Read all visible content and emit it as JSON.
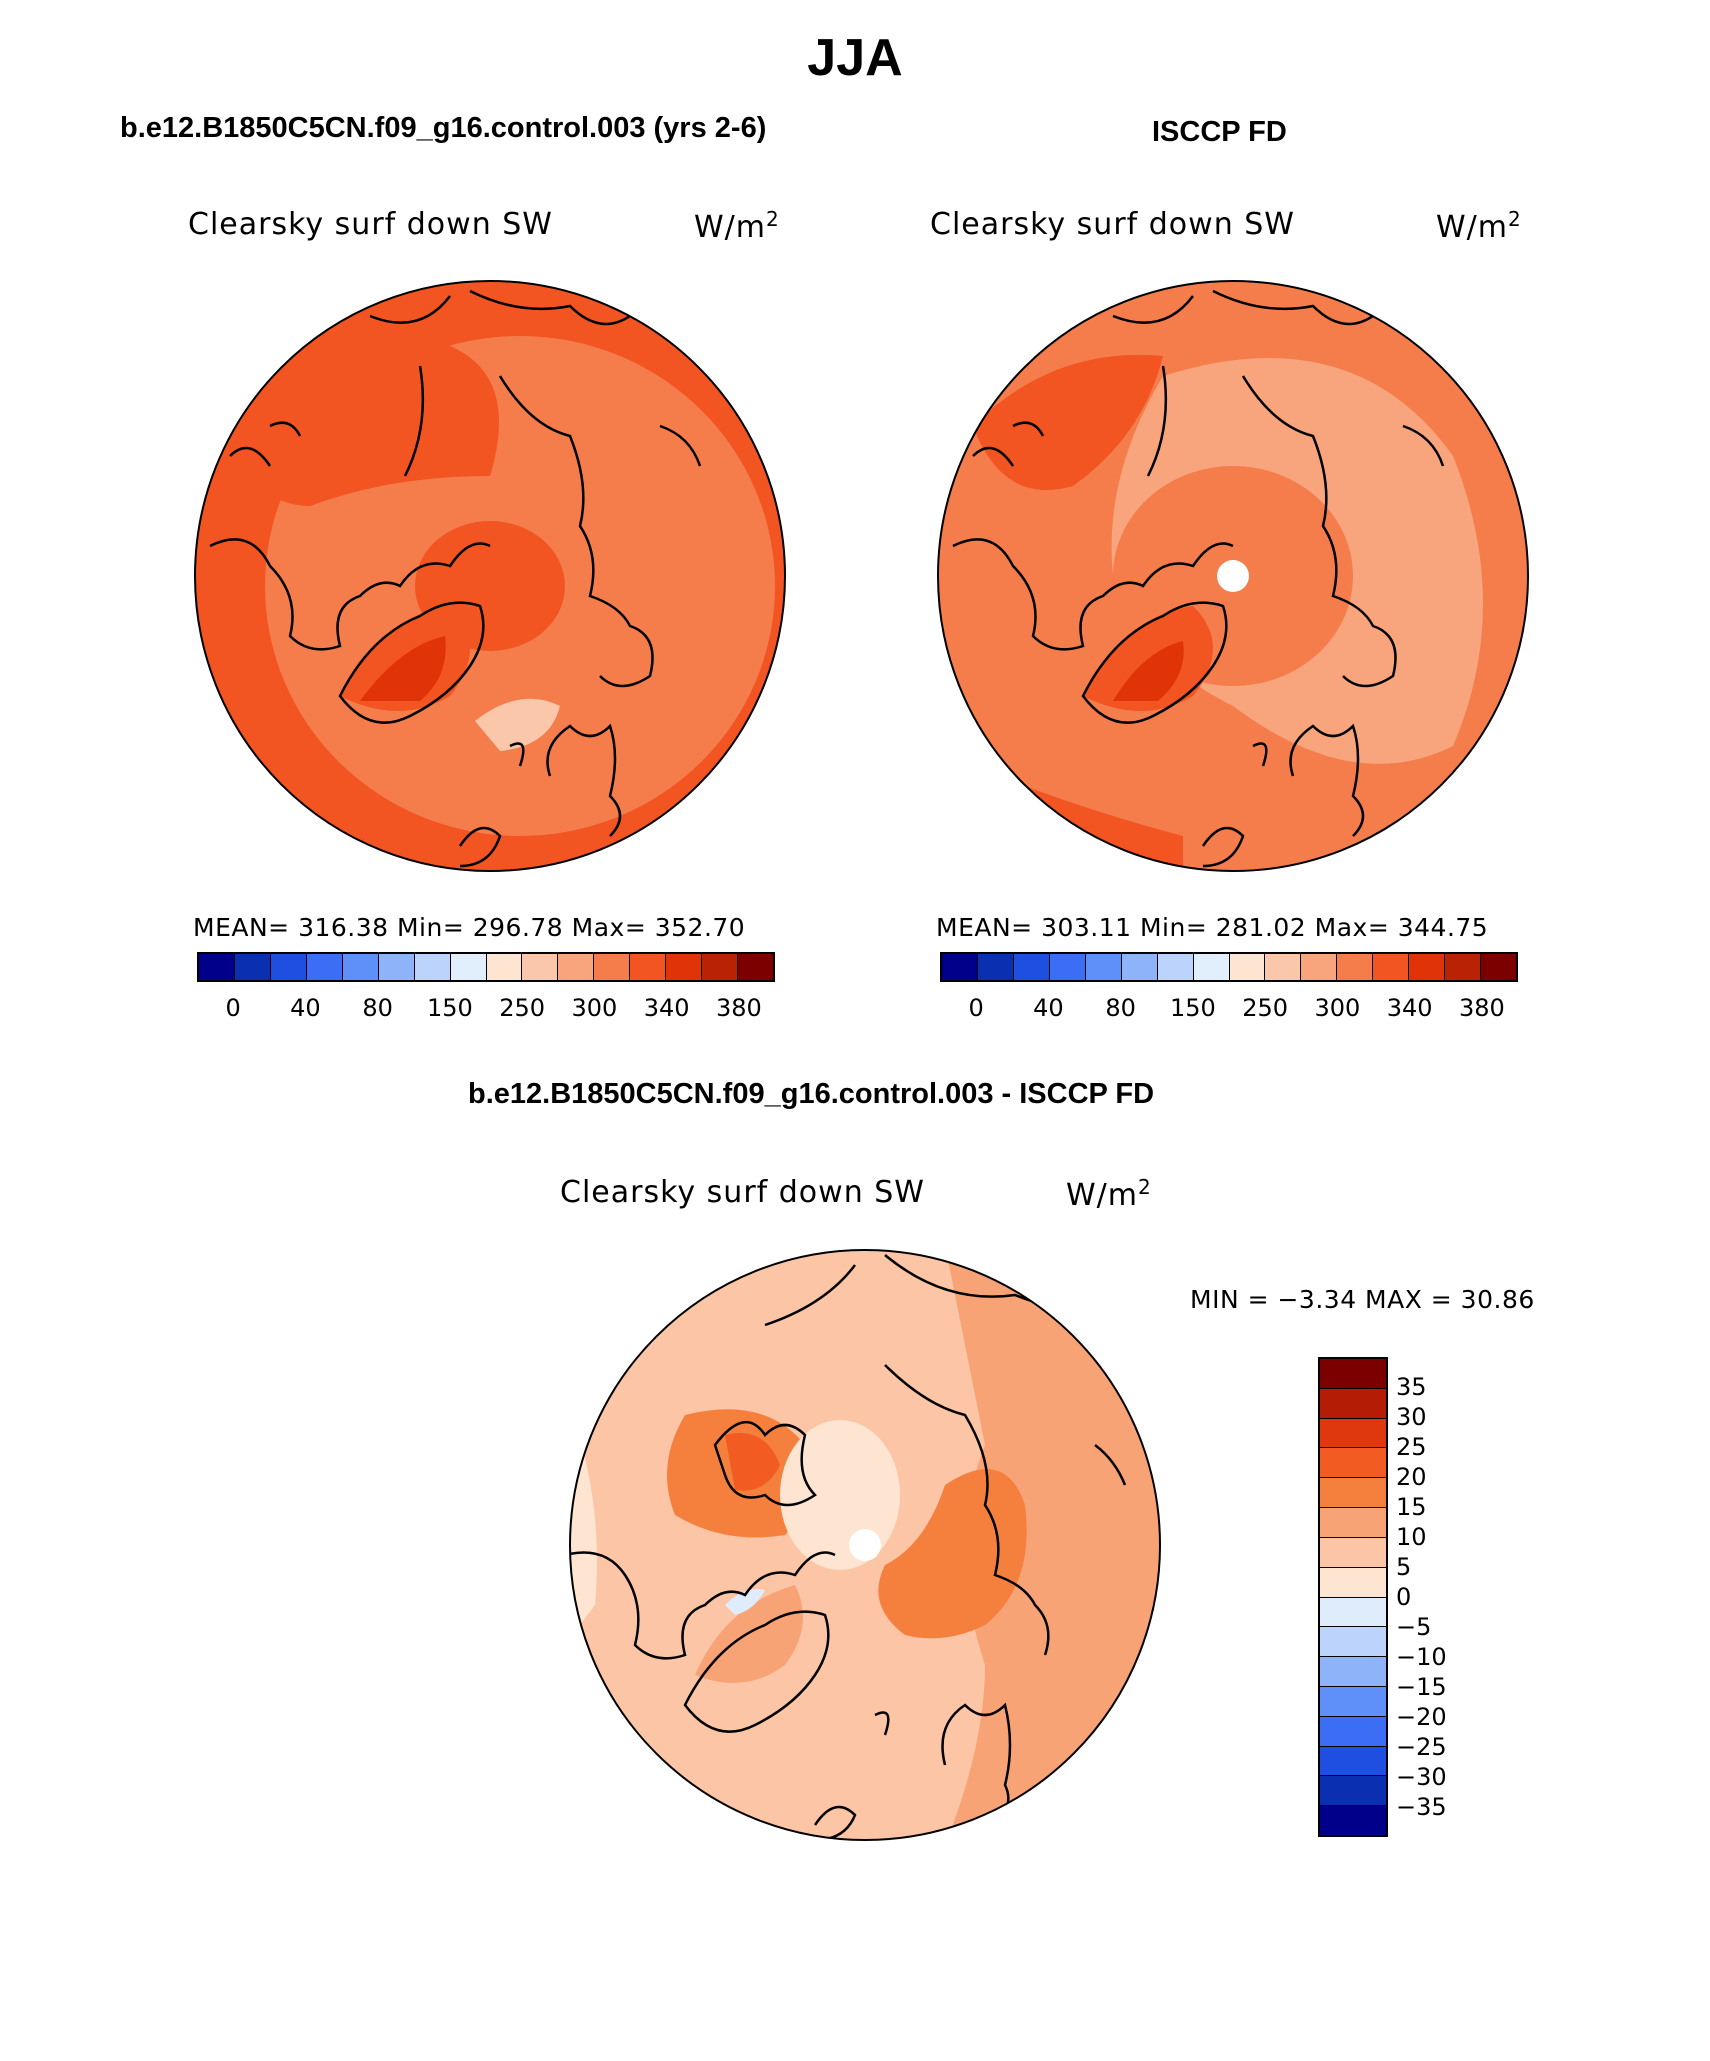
{
  "title": "JJA",
  "colors": {
    "abs_scale": [
      "#00008b",
      "#0a2fb0",
      "#1f4fe0",
      "#3c6ef5",
      "#5f8ff8",
      "#8fb3f9",
      "#bcd4fb",
      "#e1eefc",
      "#fde5d2",
      "#fbc7aa",
      "#f8a47c",
      "#f57d4c",
      "#f25422",
      "#e03308",
      "#b92203",
      "#7d0000"
    ],
    "diff_scale": [
      "#7d0000",
      "#b51c05",
      "#e0380e",
      "#f25b22",
      "#f5803e",
      "#f8a376",
      "#fcc6a6",
      "#fde5d2",
      "#deecfb",
      "#bcd4fb",
      "#8fb3f9",
      "#5f8ff8",
      "#3c6ef5",
      "#1f4fe0",
      "#0a2fb0",
      "#00008b"
    ]
  },
  "panels": {
    "model": {
      "heading": "b.e12.B1850C5CN.f09_g16.control.003 (yrs 2-6)",
      "variable": "Clearsky surf down SW",
      "units_base": "W/m",
      "units_exp": "2",
      "stats": "MEAN= 316.38   Min= 296.78   Max= 352.70",
      "ticks": [
        "0",
        "40",
        "80",
        "150",
        "250",
        "300",
        "340",
        "380"
      ]
    },
    "obs": {
      "heading": "ISCCP FD",
      "variable": "Clearsky surf down SW",
      "units_base": "W/m",
      "units_exp": "2",
      "stats": "MEAN= 303.11   Min= 281.02   Max= 344.75",
      "ticks": [
        "0",
        "40",
        "80",
        "150",
        "250",
        "300",
        "340",
        "380"
      ]
    },
    "diff": {
      "heading": "b.e12.B1850C5CN.f09_g16.control.003 - ISCCP FD",
      "variable": "Clearsky surf down SW",
      "units_base": "W/m",
      "units_exp": "2",
      "stats": "MIN =   −3.34  MAX =   30.86",
      "ticks": [
        "35",
        "30",
        "25",
        "20",
        "15",
        "10",
        "5",
        "0",
        "−5",
        "−10",
        "−15",
        "−20",
        "−25",
        "−30",
        "−35"
      ]
    }
  }
}
